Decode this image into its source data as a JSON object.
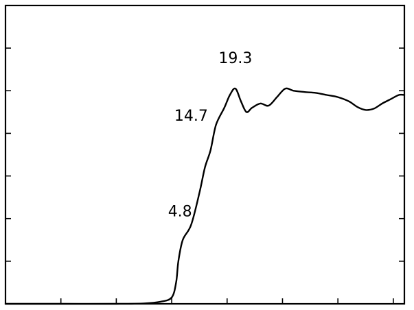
{
  "chart_data": {
    "type": "line",
    "title": "",
    "xlabel": "",
    "ylabel": "",
    "grid": false,
    "xlim": [
      0,
      7.2
    ],
    "ylim": [
      0,
      7
    ],
    "x_ticks": [
      1,
      2,
      3,
      4,
      5,
      6,
      7
    ],
    "y_ticks": [
      1,
      2,
      3,
      4,
      5,
      6
    ],
    "series": [
      {
        "x": [
          0,
          1.0,
          2.0,
          2.5,
          2.8,
          3.0,
          3.08,
          3.12,
          3.2,
          3.35,
          3.5,
          3.6,
          3.7,
          3.8,
          3.95,
          4.05,
          4.15,
          4.25,
          4.35,
          4.45,
          4.6,
          4.75,
          4.9,
          5.05,
          5.2,
          5.4,
          5.6,
          5.8,
          6.0,
          6.2,
          6.35,
          6.5,
          6.65,
          6.8,
          6.95,
          7.1,
          7.2
        ],
        "y": [
          0,
          0,
          0,
          0.01,
          0.05,
          0.15,
          0.5,
          1.0,
          1.5,
          1.85,
          2.6,
          3.2,
          3.6,
          4.2,
          4.6,
          4.9,
          5.05,
          4.75,
          4.5,
          4.6,
          4.7,
          4.65,
          4.85,
          5.05,
          5.0,
          4.97,
          4.95,
          4.9,
          4.85,
          4.75,
          4.62,
          4.55,
          4.58,
          4.7,
          4.8,
          4.9,
          4.9
        ]
      }
    ],
    "annotations": [
      {
        "text": "19.3",
        "x": 4.15,
        "y": 5.65
      },
      {
        "text": "14.7",
        "x": 3.35,
        "y": 4.3
      },
      {
        "text": "4.8",
        "x": 3.15,
        "y": 2.05
      }
    ]
  }
}
